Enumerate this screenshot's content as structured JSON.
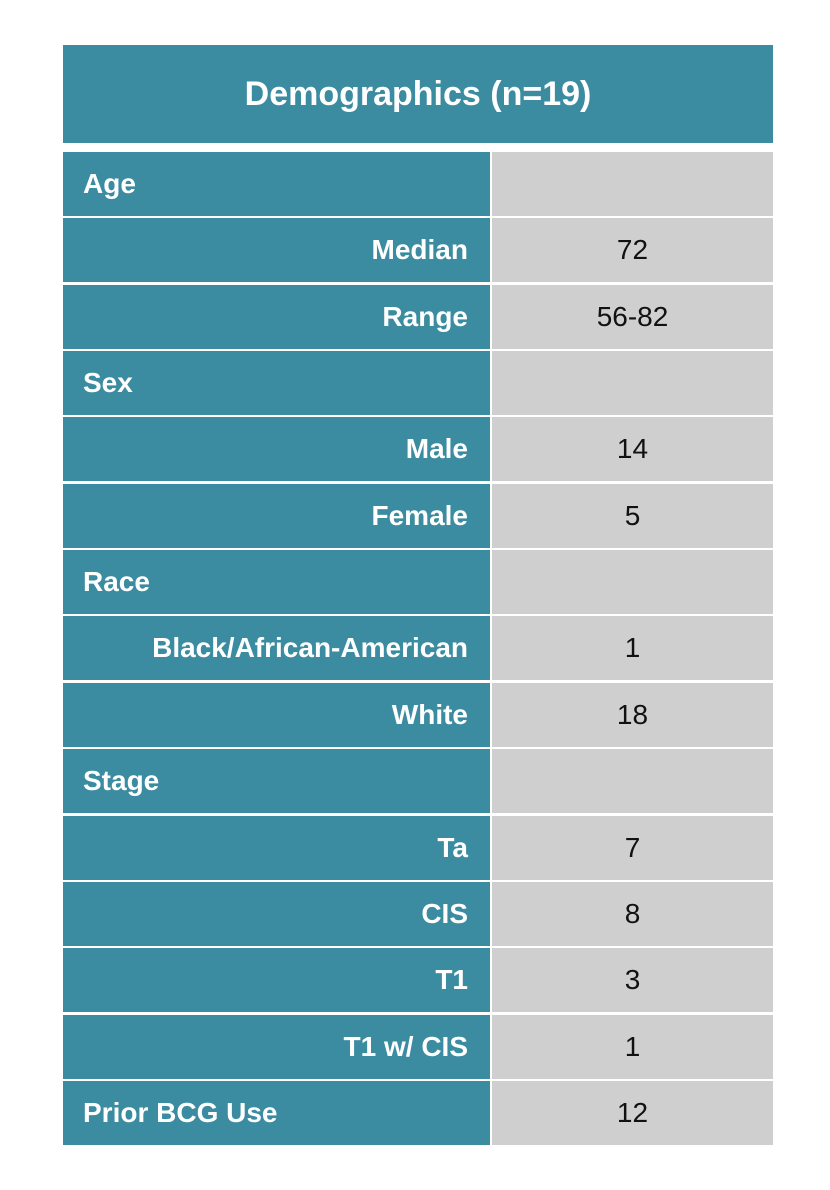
{
  "header": {
    "title": "Demographics (n=19)"
  },
  "table": {
    "groups": [
      {
        "label": "Age",
        "items": [
          {
            "label": "Median",
            "value": 72
          },
          {
            "label": "Range",
            "value": "56-82"
          }
        ]
      },
      {
        "label": "Sex",
        "items": [
          {
            "label": "Male",
            "value": 14
          },
          {
            "label": "Female",
            "value": 5
          }
        ]
      },
      {
        "label": "Race",
        "items": [
          {
            "label": "Black/African-American",
            "value": 1
          },
          {
            "label": "White",
            "value": 18
          }
        ]
      },
      {
        "label": "Stage",
        "items": [
          {
            "label": "Ta",
            "value": 7
          },
          {
            "label": "CIS",
            "value": 8
          },
          {
            "label": "T1",
            "value": 3
          },
          {
            "label": "T1 w/ CIS",
            "value": 1
          }
        ]
      },
      {
        "label": "Prior BCG Use",
        "value": 12
      }
    ]
  }
}
